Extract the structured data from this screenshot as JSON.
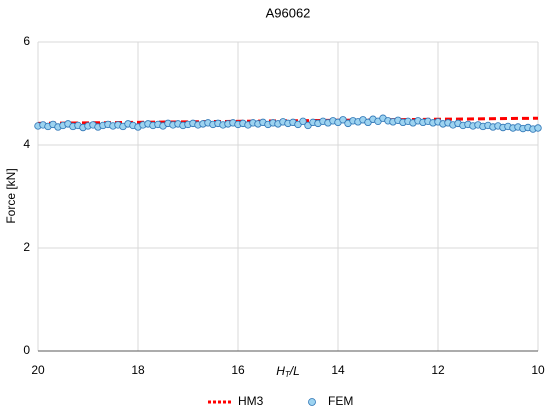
{
  "chart_data": {
    "type": "scatter",
    "title": "A96062",
    "y_label": "Force [kN]",
    "x_label": [
      "H",
      "T",
      "/L"
    ],
    "xlim": [
      20,
      10
    ],
    "xticks": [
      20,
      18,
      16,
      14,
      12,
      10
    ],
    "ylim": [
      0,
      6
    ],
    "yticks": [
      0,
      2,
      4,
      6
    ],
    "grid": true,
    "legend": "bottom",
    "series": [
      {
        "name": "HM3",
        "color": "#ff0000",
        "mode": "dashed-line",
        "x": [
          20,
          10
        ],
        "values": [
          4.42,
          4.52
        ]
      },
      {
        "name": "FEM",
        "color": "#9dd3f0",
        "edge_color": "#2e75b6",
        "mode": "markers",
        "x": [
          20.0,
          19.9,
          19.8,
          19.7,
          19.6,
          19.5,
          19.4,
          19.3,
          19.2,
          19.1,
          19.0,
          18.9,
          18.8,
          18.7,
          18.6,
          18.5,
          18.4,
          18.3,
          18.2,
          18.1,
          18.0,
          17.9,
          17.8,
          17.7,
          17.6,
          17.5,
          17.4,
          17.3,
          17.2,
          17.1,
          17.0,
          16.9,
          16.8,
          16.7,
          16.6,
          16.5,
          16.4,
          16.3,
          16.2,
          16.1,
          16.0,
          15.9,
          15.8,
          15.7,
          15.6,
          15.5,
          15.4,
          15.3,
          15.2,
          15.1,
          15.0,
          14.9,
          14.8,
          14.7,
          14.6,
          14.5,
          14.4,
          14.3,
          14.2,
          14.1,
          14.0,
          13.9,
          13.8,
          13.7,
          13.6,
          13.5,
          13.4,
          13.3,
          13.2,
          13.1,
          13.0,
          12.9,
          12.8,
          12.7,
          12.6,
          12.5,
          12.4,
          12.3,
          12.2,
          12.1,
          12.0,
          11.9,
          11.8,
          11.7,
          11.6,
          11.5,
          11.4,
          11.3,
          11.2,
          11.1,
          11.0,
          10.9,
          10.8,
          10.7,
          10.6,
          10.5,
          10.4,
          10.3,
          10.2,
          10.1,
          10.0
        ],
        "values": [
          4.37,
          4.39,
          4.36,
          4.4,
          4.35,
          4.38,
          4.41,
          4.36,
          4.38,
          4.34,
          4.37,
          4.39,
          4.35,
          4.38,
          4.4,
          4.37,
          4.39,
          4.36,
          4.41,
          4.38,
          4.35,
          4.39,
          4.41,
          4.38,
          4.4,
          4.37,
          4.42,
          4.39,
          4.41,
          4.38,
          4.4,
          4.42,
          4.39,
          4.41,
          4.43,
          4.4,
          4.42,
          4.39,
          4.41,
          4.43,
          4.4,
          4.42,
          4.39,
          4.43,
          4.41,
          4.44,
          4.4,
          4.43,
          4.41,
          4.45,
          4.42,
          4.44,
          4.4,
          4.46,
          4.38,
          4.44,
          4.42,
          4.46,
          4.43,
          4.47,
          4.44,
          4.49,
          4.42,
          4.47,
          4.45,
          4.49,
          4.44,
          4.5,
          4.46,
          4.52,
          4.47,
          4.45,
          4.48,
          4.44,
          4.46,
          4.43,
          4.47,
          4.44,
          4.46,
          4.43,
          4.45,
          4.41,
          4.43,
          4.39,
          4.42,
          4.38,
          4.4,
          4.37,
          4.39,
          4.36,
          4.38,
          4.35,
          4.37,
          4.34,
          4.36,
          4.33,
          4.35,
          4.32,
          4.34,
          4.31,
          4.33
        ]
      }
    ]
  }
}
